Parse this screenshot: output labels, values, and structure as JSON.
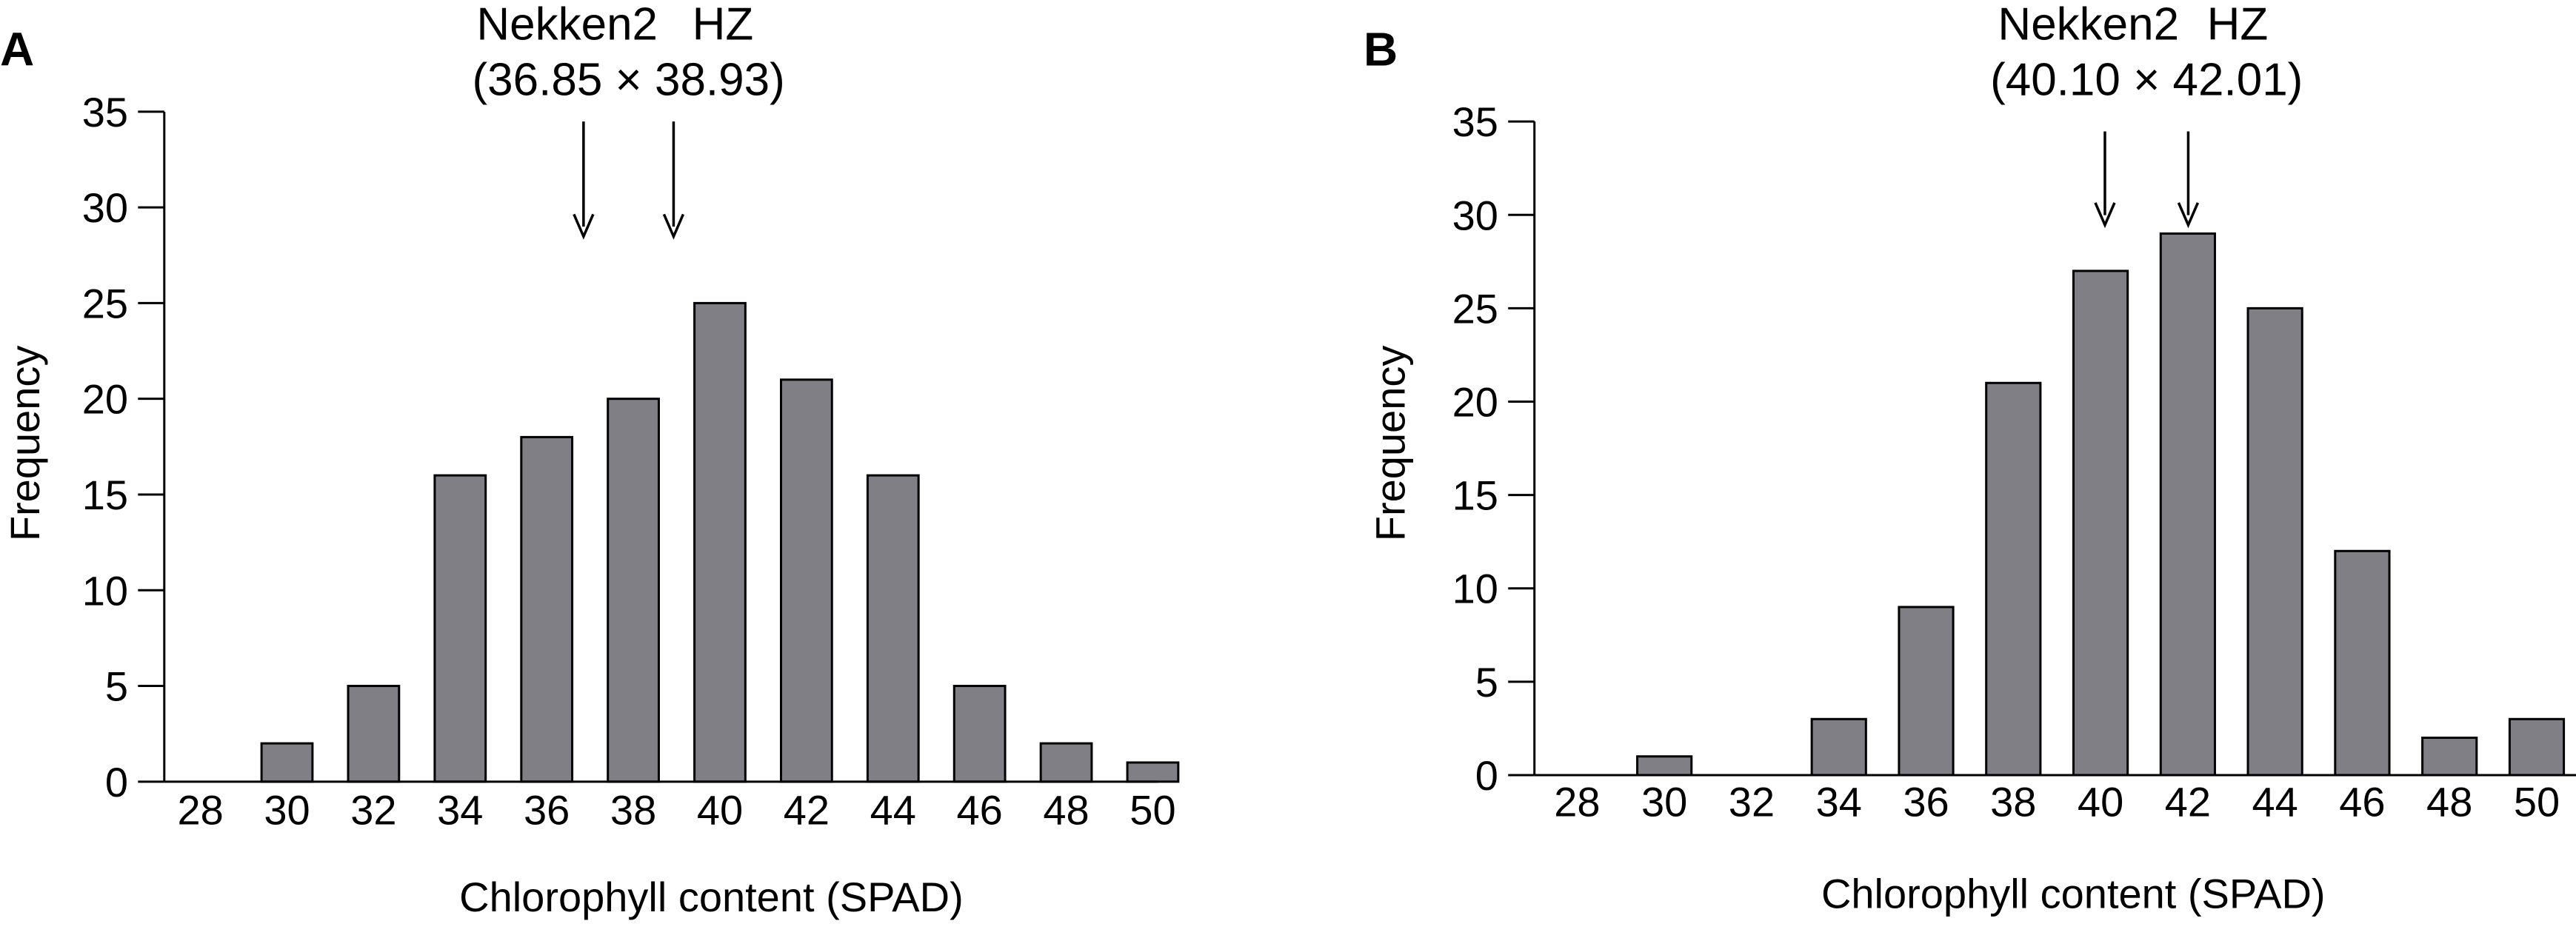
{
  "chart_data": [
    {
      "type": "bar",
      "panel_label": "A",
      "categories": [
        "28",
        "30",
        "32",
        "34",
        "36",
        "38",
        "40",
        "42",
        "44",
        "46",
        "48",
        "50"
      ],
      "values": [
        0,
        2,
        5,
        16,
        18,
        20,
        25,
        21,
        16,
        5,
        2,
        1
      ],
      "xlabel": "Chlorophyll content (SPAD)",
      "ylabel": "Frequency",
      "ylim": [
        0,
        35
      ],
      "yticks": [
        "0",
        "5",
        "10",
        "15",
        "20",
        "25",
        "30",
        "35"
      ],
      "annotation": {
        "labels": [
          "Nekken2",
          "HZ"
        ],
        "values_text": "(36.85 × 38.93)",
        "arrow_x": [
          36.85,
          38.93
        ]
      },
      "grid": false,
      "legend": "none"
    },
    {
      "type": "bar",
      "panel_label": "B",
      "categories": [
        "28",
        "30",
        "32",
        "34",
        "36",
        "38",
        "40",
        "42",
        "44",
        "46",
        "48",
        "50"
      ],
      "values": [
        0,
        1,
        0,
        3,
        9,
        21,
        27,
        29,
        25,
        12,
        2,
        3
      ],
      "xlabel": "Chlorophyll content (SPAD)",
      "ylabel": "Frequency",
      "ylim": [
        0,
        35
      ],
      "yticks": [
        "0",
        "5",
        "10",
        "15",
        "20",
        "25",
        "30",
        "35"
      ],
      "annotation": {
        "labels": [
          "Nekken2",
          "HZ"
        ],
        "values_text": "(40.10 × 42.01)",
        "arrow_x": [
          40.1,
          42.01
        ]
      },
      "grid": false,
      "legend": "none"
    }
  ]
}
